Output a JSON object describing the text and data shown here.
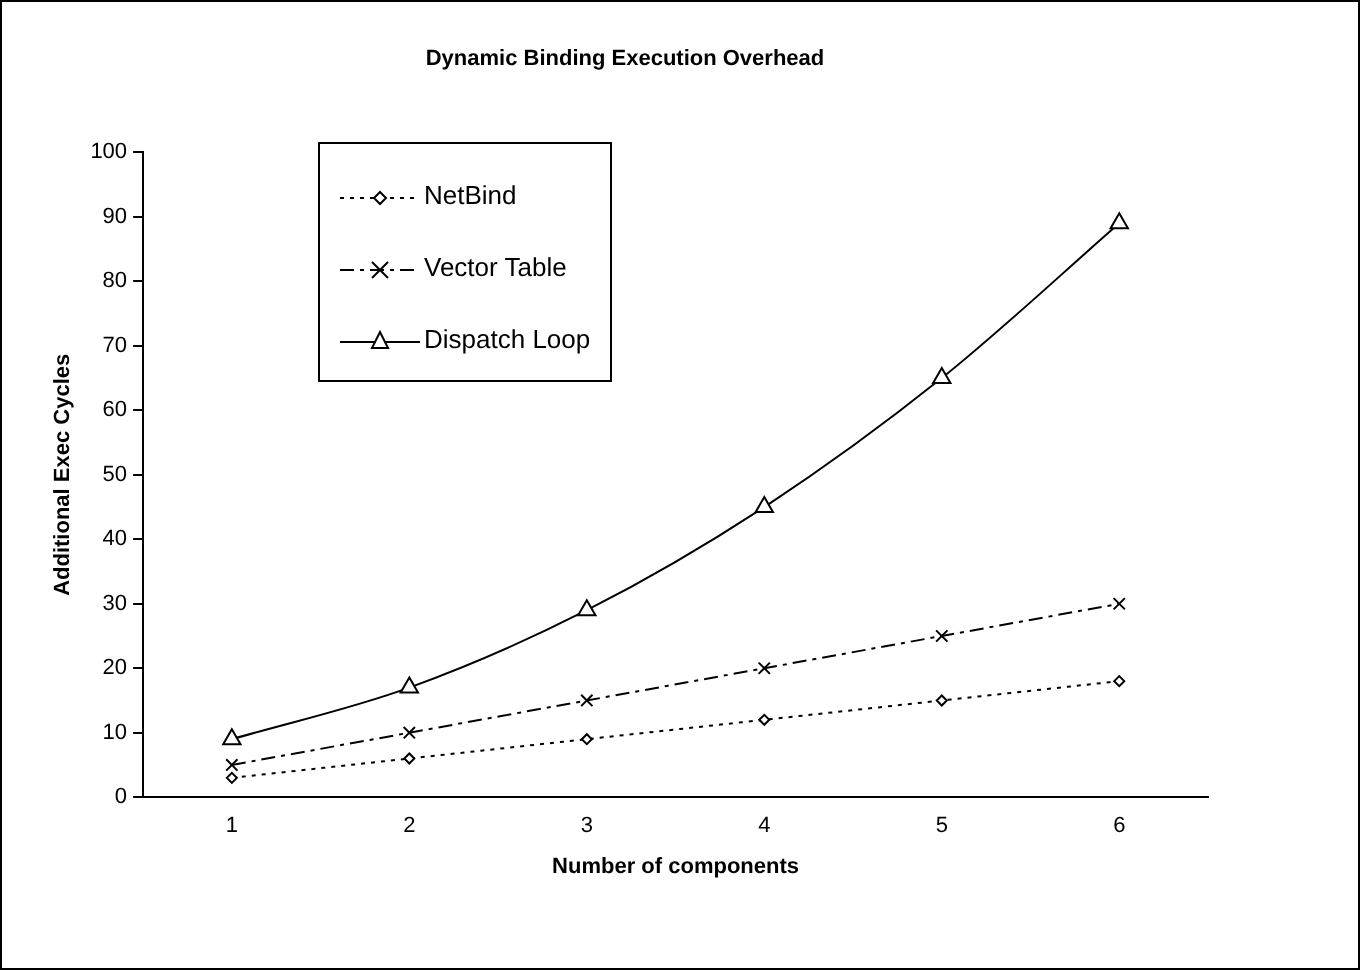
{
  "chart_data": {
    "type": "line",
    "title": "Dynamic Binding Execution Overhead",
    "xlabel": "Number of components",
    "ylabel": "Additional Exec Cycles",
    "categories": [
      "1",
      "2",
      "3",
      "4",
      "5",
      "6"
    ],
    "series": [
      {
        "name": "NetBind",
        "color": "#000000",
        "marker": "diamond",
        "line_style": "dotted",
        "values": [
          3,
          6,
          9,
          12,
          15,
          18
        ]
      },
      {
        "name": "Vector Table",
        "color": "#000000",
        "marker": "cross",
        "line_style": "dashed",
        "values": [
          5,
          10,
          15,
          20,
          25,
          30
        ]
      },
      {
        "name": "Dispatch Loop",
        "color": "#000000",
        "marker": "triangle",
        "line_style": "solid",
        "values": [
          9,
          17,
          29,
          45,
          65,
          89
        ]
      }
    ],
    "ylim": [
      0,
      100
    ],
    "yticks": [
      0,
      10,
      20,
      30,
      40,
      50,
      60,
      70,
      80,
      90,
      100
    ],
    "grid": false,
    "legend": "top left"
  }
}
